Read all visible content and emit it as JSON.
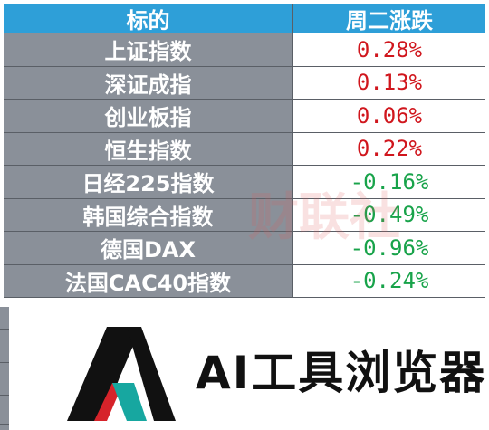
{
  "table": {
    "header": {
      "col1": "标的",
      "col2": "周二涨跌"
    },
    "rows": [
      {
        "name": "上证指数",
        "change": "0.28%",
        "direction": "up"
      },
      {
        "name": "深证成指",
        "change": "0.13%",
        "direction": "up"
      },
      {
        "name": "创业板指",
        "change": "0.06%",
        "direction": "up"
      },
      {
        "name": "恒生指数",
        "change": "0.22%",
        "direction": "up"
      },
      {
        "name": "日经225指数",
        "change": "-0.16%",
        "direction": "down"
      },
      {
        "name": "韩国综合指数",
        "change": "-0.49%",
        "direction": "down"
      },
      {
        "name": "德国DAX",
        "change": "-0.96%",
        "direction": "down"
      },
      {
        "name": "法国CAC40指数",
        "change": "-0.24%",
        "direction": "down"
      }
    ]
  },
  "watermark": {
    "text": "财联社"
  },
  "banner": {
    "text": "AI工具浏览器",
    "logo_icon": "ai-logo-icon"
  },
  "colors": {
    "header_bg": "#2e9fd8",
    "name_bg": "#8a9099",
    "up": "#d0161d",
    "down": "#18a34a"
  }
}
